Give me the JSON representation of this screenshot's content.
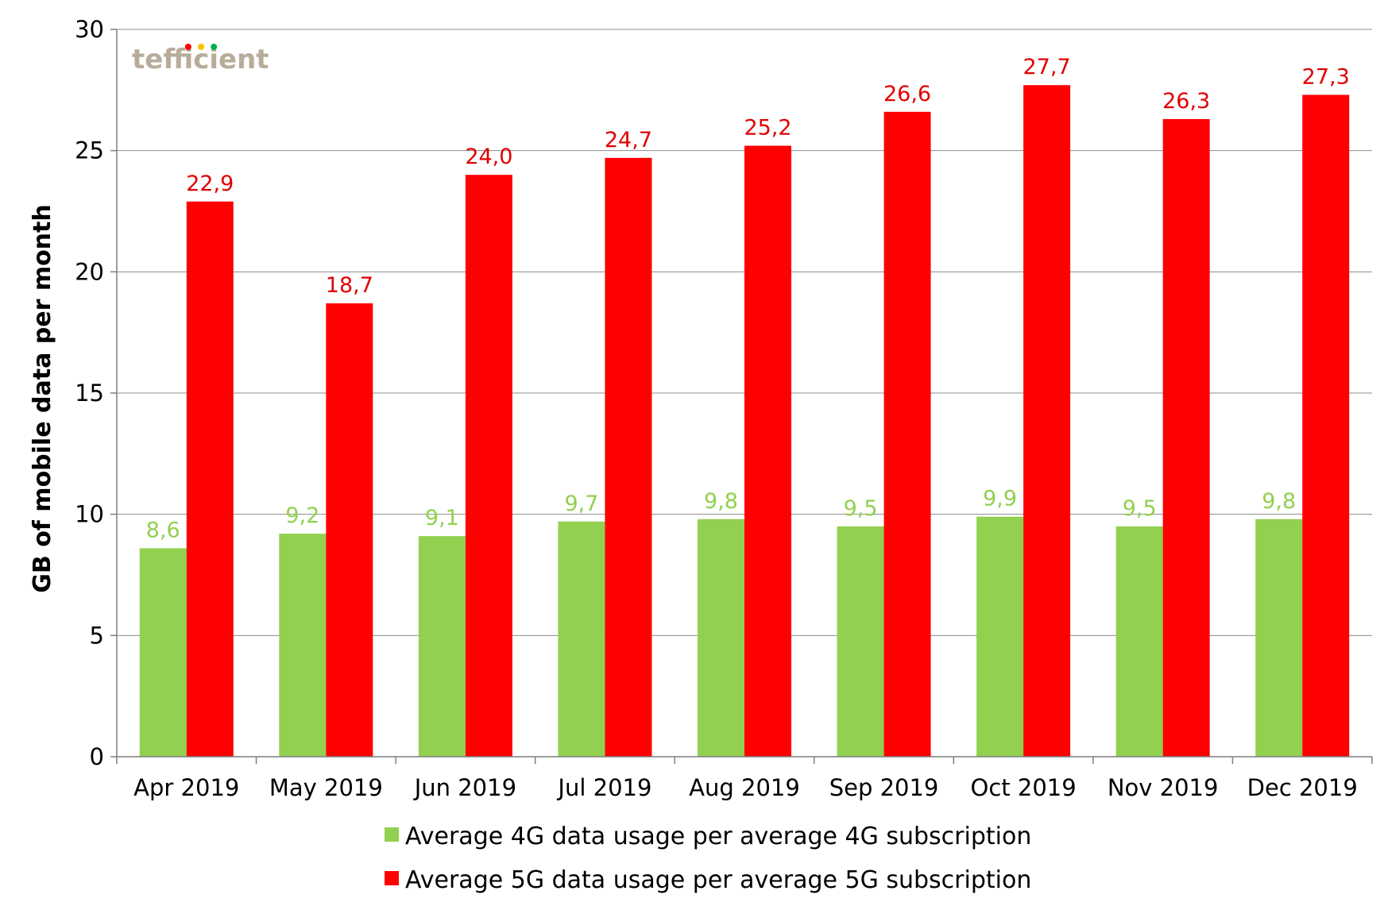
{
  "chart_data": {
    "type": "bar",
    "categories": [
      "Apr 2019",
      "May 2019",
      "Jun 2019",
      "Jul 2019",
      "Aug 2019",
      "Sep 2019",
      "Oct 2019",
      "Nov 2019",
      "Dec 2019"
    ],
    "series": [
      {
        "name": "Average 4G data usage per average 4G subscription",
        "values": [
          8.6,
          9.2,
          9.1,
          9.7,
          9.8,
          9.5,
          9.9,
          9.5,
          9.8
        ],
        "labels": [
          "8,6",
          "9,2",
          "9,1",
          "9,7",
          "9,8",
          "9,5",
          "9,9",
          "9,5",
          "9,8"
        ],
        "color": "#92d050"
      },
      {
        "name": "Average 5G data usage per average 5G subscription",
        "values": [
          22.9,
          18.7,
          24.0,
          24.7,
          25.2,
          26.6,
          27.7,
          26.3,
          27.3
        ],
        "labels": [
          "22,9",
          "18,7",
          "24,0",
          "24,7",
          "25,2",
          "26,6",
          "27,7",
          "26,3",
          "27,3"
        ],
        "color": "#ff0000"
      }
    ],
    "ylabel": "GB of mobile data per month",
    "xlabel": "",
    "ylim": [
      0,
      30
    ],
    "yticks": [
      0,
      5,
      10,
      15,
      20,
      25,
      30
    ],
    "grid": true,
    "legend": "bottom",
    "data_label_colors": {
      "4G": "#92d050",
      "5G": "#e00000"
    }
  },
  "logo": {
    "text": "tefficient",
    "dot_colors": [
      "#ff0000",
      "#ffc000",
      "#00b050"
    ]
  }
}
